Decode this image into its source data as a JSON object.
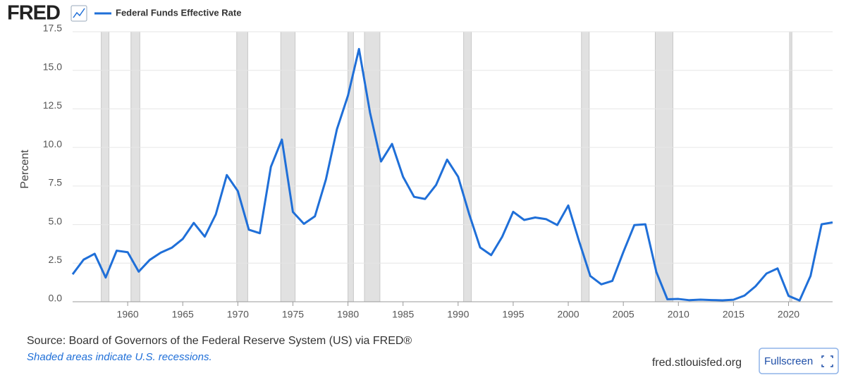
{
  "logo": "FRED",
  "chart_data": {
    "type": "line",
    "y_label": "Percent",
    "x": [
      1955,
      1956,
      1957,
      1958,
      1959,
      1960,
      1961,
      1962,
      1963,
      1964,
      1965,
      1966,
      1967,
      1968,
      1969,
      1970,
      1971,
      1972,
      1973,
      1974,
      1975,
      1976,
      1977,
      1978,
      1979,
      1980,
      1981,
      1982,
      1983,
      1984,
      1985,
      1986,
      1987,
      1988,
      1989,
      1990,
      1991,
      1992,
      1993,
      1994,
      1995,
      1996,
      1997,
      1998,
      1999,
      2000,
      2001,
      2002,
      2003,
      2004,
      2005,
      2006,
      2007,
      2008,
      2009,
      2010,
      2011,
      2012,
      2013,
      2014,
      2015,
      2016,
      2017,
      2018,
      2019,
      2020,
      2021,
      2022,
      2023,
      2024
    ],
    "series": [
      {
        "name": "Federal Funds Effective Rate",
        "color": "#1f6fd8",
        "values": [
          1.78,
          2.73,
          3.11,
          1.57,
          3.31,
          3.21,
          1.95,
          2.71,
          3.18,
          3.5,
          4.07,
          5.11,
          4.22,
          5.66,
          8.21,
          7.17,
          4.67,
          4.44,
          8.74,
          10.51,
          5.82,
          5.05,
          5.54,
          7.93,
          11.19,
          13.36,
          16.38,
          12.26,
          9.09,
          10.23,
          8.1,
          6.8,
          6.66,
          7.57,
          9.21,
          8.1,
          5.69,
          3.52,
          3.02,
          4.21,
          5.83,
          5.3,
          5.46,
          5.35,
          4.97,
          6.24,
          3.88,
          1.67,
          1.13,
          1.35,
          3.22,
          4.97,
          5.02,
          1.92,
          0.16,
          0.18,
          0.1,
          0.14,
          0.11,
          0.09,
          0.13,
          0.4,
          1.0,
          1.83,
          2.16,
          0.38,
          0.08,
          1.68,
          5.02,
          5.14
        ]
      }
    ],
    "recessions": [
      [
        1957.6,
        1958.3
      ],
      [
        1960.3,
        1961.1
      ],
      [
        1969.9,
        1970.9
      ],
      [
        1973.9,
        1975.2
      ],
      [
        1980.0,
        1980.5
      ],
      [
        1981.5,
        1982.9
      ],
      [
        1990.5,
        1991.2
      ],
      [
        2001.2,
        2001.9
      ],
      [
        2007.9,
        2009.5
      ],
      [
        2020.1,
        2020.3
      ]
    ],
    "recession_color": "#e1e1e1",
    "xlim": [
      1955,
      2024
    ],
    "xticks": [
      1960,
      1965,
      1970,
      1975,
      1980,
      1985,
      1990,
      1995,
      2000,
      2005,
      2010,
      2015,
      2020
    ],
    "ylim": [
      0,
      17.5
    ],
    "yticks": [
      {
        "value": 0,
        "label": "0.0"
      },
      2.5,
      {
        "value": 5,
        "label": "5.0"
      },
      7.5,
      {
        "value": 10,
        "label": "10.0"
      },
      12.5,
      {
        "value": 15,
        "label": "15.0"
      },
      17.5
    ],
    "grid": true
  },
  "footer": {
    "source": "Source: Board of Governors of the Federal Reserve System (US) via FRED®",
    "note": "Shaded areas indicate U.S. recessions.",
    "site": "fred.stlouisfed.org",
    "button": "Fullscreen"
  }
}
